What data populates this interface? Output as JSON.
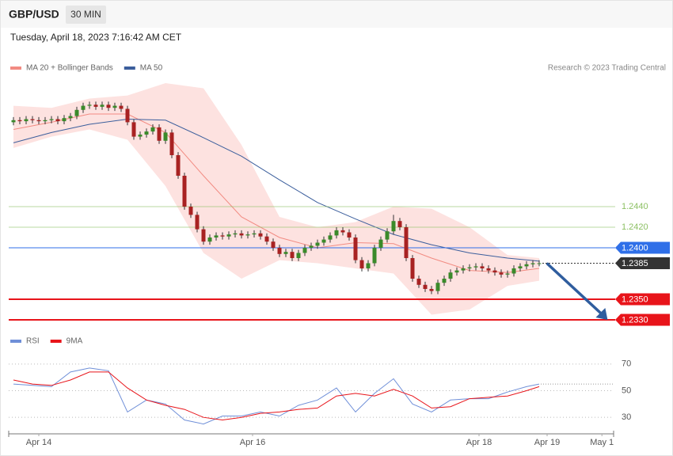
{
  "header": {
    "symbol": "GBP/USD",
    "interval": "30 MIN",
    "datetime": "Tuesday, April 18, 2023 7:16:42 AM CET"
  },
  "chart_data": [
    {
      "type": "candlestick",
      "credit": "Research © 2023 Trading Central",
      "xlim": [
        -0.75,
        94.75
      ],
      "ylim": [
        1.2325,
        1.2565
      ],
      "up_color": "#3a8a2a",
      "down_color": "#a82222",
      "band_color": "#fde2e0",
      "candles": [
        [
          1.2522,
          1.2527,
          1.2519,
          1.2524
        ],
        [
          1.2524,
          1.2527,
          1.252,
          1.2523
        ],
        [
          1.2523,
          1.2528,
          1.252,
          1.2525
        ],
        [
          1.2525,
          1.2528,
          1.2521,
          1.2524
        ],
        [
          1.2524,
          1.2527,
          1.252,
          1.2523
        ],
        [
          1.2523,
          1.2527,
          1.252,
          1.2524
        ],
        [
          1.2524,
          1.2528,
          1.2521,
          1.2525
        ],
        [
          1.2525,
          1.2528,
          1.252,
          1.2523
        ],
        [
          1.2523,
          1.2529,
          1.252,
          1.2526
        ],
        [
          1.2526,
          1.2531,
          1.2523,
          1.2528
        ],
        [
          1.2528,
          1.2537,
          1.2525,
          1.2534
        ],
        [
          1.2534,
          1.2541,
          1.2531,
          1.2538
        ],
        [
          1.2538,
          1.2542,
          1.2535,
          1.2539
        ],
        [
          1.2539,
          1.2542,
          1.2534,
          1.2537
        ],
        [
          1.2537,
          1.2542,
          1.2534,
          1.2539
        ],
        [
          1.2539,
          1.2542,
          1.2533,
          1.2536
        ],
        [
          1.2536,
          1.2541,
          1.2533,
          1.2538
        ],
        [
          1.2538,
          1.2541,
          1.2532,
          1.2535
        ],
        [
          1.2535,
          1.2538,
          1.2519,
          1.2522
        ],
        [
          1.2522,
          1.2525,
          1.2505,
          1.2508
        ],
        [
          1.2508,
          1.2513,
          1.2505,
          1.251
        ],
        [
          1.251,
          1.2516,
          1.2507,
          1.2513
        ],
        [
          1.2513,
          1.252,
          1.251,
          1.2517
        ],
        [
          1.2517,
          1.252,
          1.2501,
          1.2504
        ],
        [
          1.2504,
          1.2515,
          1.2501,
          1.2512
        ],
        [
          1.2512,
          1.2515,
          1.2487,
          1.249
        ],
        [
          1.249,
          1.2493,
          1.2467,
          1.247
        ],
        [
          1.247,
          1.2473,
          1.2437,
          1.244
        ],
        [
          1.244,
          1.2443,
          1.2429,
          1.2432
        ],
        [
          1.2432,
          1.2435,
          1.2415,
          1.2418
        ],
        [
          1.2418,
          1.2421,
          1.2403,
          1.2406
        ],
        [
          1.2406,
          1.2413,
          1.2403,
          1.241
        ],
        [
          1.241,
          1.2415,
          1.2407,
          1.2412
        ],
        [
          1.2412,
          1.2415,
          1.2408,
          1.2411
        ],
        [
          1.2411,
          1.2416,
          1.2408,
          1.2413
        ],
        [
          1.2413,
          1.2417,
          1.241,
          1.2414
        ],
        [
          1.2414,
          1.2417,
          1.2409,
          1.2412
        ],
        [
          1.2412,
          1.2416,
          1.2409,
          1.2413
        ],
        [
          1.2413,
          1.2417,
          1.241,
          1.2414
        ],
        [
          1.2414,
          1.2417,
          1.2408,
          1.2411
        ],
        [
          1.2411,
          1.2414,
          1.2403,
          1.2406
        ],
        [
          1.2406,
          1.2409,
          1.2397,
          1.24
        ],
        [
          1.24,
          1.2403,
          1.2391,
          1.2394
        ],
        [
          1.2394,
          1.2399,
          1.2391,
          1.2396
        ],
        [
          1.2396,
          1.2399,
          1.2387,
          1.239
        ],
        [
          1.239,
          1.2398,
          1.2387,
          1.2395
        ],
        [
          1.2395,
          1.2403,
          1.2392,
          1.24
        ],
        [
          1.24,
          1.2405,
          1.2397,
          1.2402
        ],
        [
          1.2402,
          1.2408,
          1.2399,
          1.2405
        ],
        [
          1.2405,
          1.2411,
          1.2402,
          1.2408
        ],
        [
          1.2408,
          1.2415,
          1.2405,
          1.2412
        ],
        [
          1.2412,
          1.242,
          1.2409,
          1.2417
        ],
        [
          1.2417,
          1.242,
          1.2412,
          1.2415
        ],
        [
          1.2415,
          1.2418,
          1.2407,
          1.241
        ],
        [
          1.241,
          1.2413,
          1.2385,
          1.2388
        ],
        [
          1.2388,
          1.2391,
          1.2377,
          1.238
        ],
        [
          1.238,
          1.2388,
          1.2377,
          1.2385
        ],
        [
          1.2385,
          1.2403,
          1.2382,
          1.24
        ],
        [
          1.24,
          1.2411,
          1.2397,
          1.2408
        ],
        [
          1.2408,
          1.2419,
          1.2405,
          1.2416
        ],
        [
          1.2416,
          1.2432,
          1.2413,
          1.2426
        ],
        [
          1.2426,
          1.2429,
          1.2417,
          1.242
        ],
        [
          1.242,
          1.2423,
          1.2387,
          1.239
        ],
        [
          1.239,
          1.2393,
          1.2367,
          1.237
        ],
        [
          1.237,
          1.2373,
          1.2361,
          1.2364
        ],
        [
          1.2364,
          1.2367,
          1.2357,
          1.236
        ],
        [
          1.236,
          1.2363,
          1.2355,
          1.2358
        ],
        [
          1.2358,
          1.2369,
          1.2355,
          1.2366
        ],
        [
          1.2366,
          1.2373,
          1.2363,
          1.237
        ],
        [
          1.237,
          1.2379,
          1.2367,
          1.2376
        ],
        [
          1.2376,
          1.2381,
          1.2373,
          1.2378
        ],
        [
          1.2378,
          1.2383,
          1.2375,
          1.238
        ],
        [
          1.238,
          1.2384,
          1.2377,
          1.2381
        ],
        [
          1.2381,
          1.2385,
          1.2378,
          1.2382
        ],
        [
          1.2382,
          1.2385,
          1.2377,
          1.238
        ],
        [
          1.238,
          1.2383,
          1.2375,
          1.2378
        ],
        [
          1.2378,
          1.2381,
          1.2373,
          1.2376
        ],
        [
          1.2376,
          1.2379,
          1.2371,
          1.2374
        ],
        [
          1.2374,
          1.2378,
          1.2371,
          1.2375
        ],
        [
          1.2375,
          1.2383,
          1.2372,
          1.238
        ],
        [
          1.238,
          1.2385,
          1.2377,
          1.2382
        ],
        [
          1.2382,
          1.2387,
          1.2379,
          1.2384
        ],
        [
          1.2384,
          1.2388,
          1.2381,
          1.2385
        ],
        [
          1.2385,
          1.2388,
          1.2382,
          1.2385
        ]
      ],
      "series": [
        {
          "name": "MA 20 + Bollinger Bands",
          "color": "#f28b82",
          "x": [
            0,
            6,
            12,
            18,
            24,
            30,
            36,
            42,
            48,
            54,
            60,
            66,
            72,
            78,
            83
          ],
          "values": [
            1.2515,
            1.2522,
            1.253,
            1.253,
            1.2512,
            1.247,
            1.243,
            1.241,
            1.24,
            1.2405,
            1.2404,
            1.239,
            1.2378,
            1.2376,
            1.238
          ],
          "upper": [
            1.2538,
            1.2536,
            1.2545,
            1.2548,
            1.256,
            1.2555,
            1.25,
            1.243,
            1.242,
            1.2425,
            1.244,
            1.2438,
            1.242,
            1.2393,
            1.239
          ],
          "lower": [
            1.2497,
            1.2508,
            1.2515,
            1.2505,
            1.246,
            1.2395,
            1.237,
            1.2388,
            1.2385,
            1.238,
            1.2375,
            1.2335,
            1.234,
            1.2363,
            1.2368
          ]
        },
        {
          "name": "MA 50",
          "color": "#3b5e9c",
          "x": [
            0,
            6,
            12,
            18,
            24,
            30,
            36,
            42,
            48,
            54,
            60,
            66,
            72,
            78,
            83
          ],
          "values": [
            1.2502,
            1.2512,
            1.252,
            1.2525,
            1.2524,
            1.2507,
            1.2489,
            1.2466,
            1.2444,
            1.2428,
            1.2413,
            1.2403,
            1.2395,
            1.239,
            1.2387
          ]
        }
      ],
      "levels": [
        {
          "value": 1.244,
          "label": "1.2440",
          "color": "#8cc063",
          "label_style": "text",
          "line": "solid"
        },
        {
          "value": 1.242,
          "label": "1.2420",
          "color": "#8cc063",
          "label_style": "text",
          "line": "solid"
        },
        {
          "value": 1.24,
          "label": "1.2400",
          "color": "#2f6fe8",
          "label_style": "box",
          "line": "solid"
        },
        {
          "value": 1.2385,
          "label": "1.2385",
          "color": "#333333",
          "label_style": "box",
          "line": "dotted"
        },
        {
          "value": 1.235,
          "label": "1.2350",
          "color": "#e8141a",
          "label_style": "box",
          "line": "solid"
        },
        {
          "value": 1.233,
          "label": "1.2330",
          "color": "#e8141a",
          "label_style": "box",
          "line": "solid"
        }
      ]
    },
    {
      "type": "line",
      "xlim": [
        -0.75,
        94.75
      ],
      "ylim": [
        20,
        80
      ],
      "yticks": [
        30,
        50,
        70
      ],
      "grid": true,
      "xticks": [
        {
          "value": 4,
          "label": "Apr 14"
        },
        {
          "value": 37.75,
          "label": "Apr 16"
        },
        {
          "value": 73.5,
          "label": "Apr 18"
        },
        {
          "value": 84.25,
          "label": "Apr 19"
        },
        {
          "value": 92.9,
          "label": "May 1"
        }
      ],
      "series": [
        {
          "name": "RSI",
          "color": "#6f8fd8",
          "x": [
            0,
            3,
            6,
            9,
            12,
            15,
            18,
            21,
            24,
            27,
            30,
            33,
            36,
            39,
            42,
            45,
            48,
            51,
            54,
            57,
            60,
            63,
            66,
            69,
            72,
            75,
            78,
            81,
            83
          ],
          "values": [
            55,
            54,
            53,
            64,
            67,
            65,
            34,
            43,
            40,
            28,
            25,
            31,
            31,
            34,
            31,
            39,
            43,
            52,
            34,
            48,
            59,
            40,
            34,
            43,
            44,
            44,
            49,
            53,
            55
          ]
        },
        {
          "name": "9MA",
          "color": "#e8141a",
          "x": [
            0,
            3,
            6,
            9,
            12,
            15,
            18,
            21,
            24,
            27,
            30,
            33,
            36,
            39,
            42,
            45,
            48,
            51,
            54,
            57,
            60,
            63,
            66,
            69,
            72,
            75,
            78,
            81,
            83
          ],
          "values": [
            58,
            55,
            54,
            58,
            64,
            64,
            52,
            43,
            39,
            36,
            30,
            28,
            30,
            33,
            34,
            36,
            37,
            46,
            48,
            46,
            51,
            46,
            37,
            38,
            44,
            45,
            46,
            50,
            53
          ]
        }
      ]
    }
  ]
}
